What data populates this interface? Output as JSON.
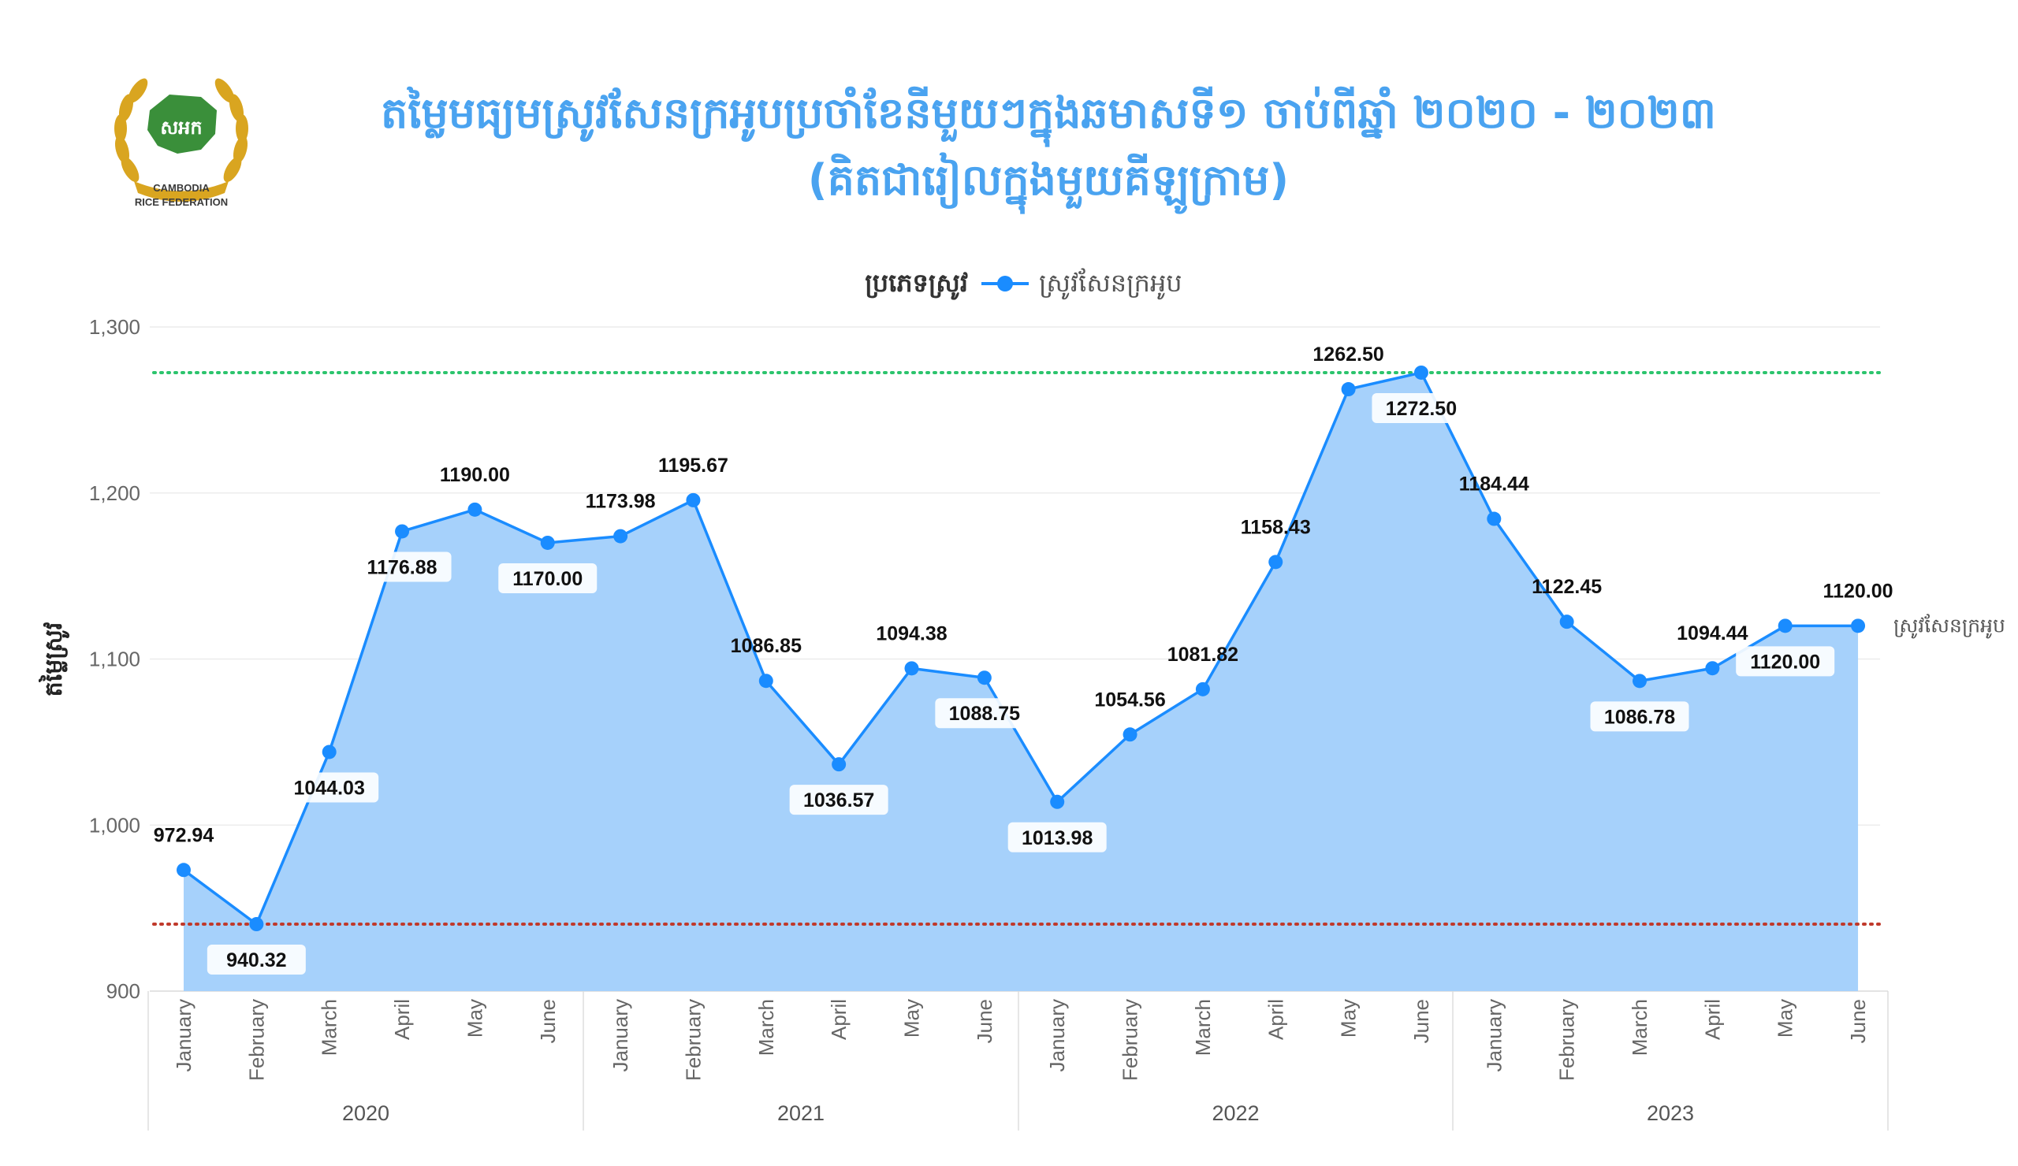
{
  "header": {
    "title_line1": "តម្លៃមធ្យមស្រូវសែនក្រអូបប្រចាំខែនីមួយៗក្នុងឆមាសទី១ ចាប់ពីឆ្នាំ ២០២០ - ២០២៣",
    "title_line2": "(គិតជារៀលក្នុងមួយគីឡូក្រាម)",
    "logo_text_top": "សអក",
    "logo_text_bottom_1": "CAMBODIA",
    "logo_text_bottom_2": "RICE FEDERATION"
  },
  "colors": {
    "title": "#4aa3f0",
    "series": "#1a8cff",
    "area": "#a6d1fb",
    "max_line": "#2cc46d",
    "min_line": "#c0392b",
    "logo_gold": "#d9a520",
    "logo_green": "#3a8f3a"
  },
  "chart_data": {
    "type": "area",
    "legend_title": "ប្រភេទស្រូវ",
    "legend_position": "top-center",
    "ylabel": "តម្លៃស្រូវ",
    "ylim": [
      900,
      1300
    ],
    "yticks": [
      900,
      1000,
      1100,
      1200,
      1300
    ],
    "ytick_labels": [
      "900",
      "1,000",
      "1,100",
      "1,200",
      "1,300"
    ],
    "grid": true,
    "months": [
      "January",
      "February",
      "March",
      "April",
      "May",
      "June",
      "January",
      "February",
      "March",
      "April",
      "May",
      "June",
      "January",
      "February",
      "March",
      "April",
      "May",
      "June",
      "January",
      "February",
      "March",
      "April",
      "May",
      "June"
    ],
    "years": [
      "2020",
      "2021",
      "2022",
      "2023"
    ],
    "series": [
      {
        "name": "ស្រូវសែនក្រអូប",
        "values": [
          972.94,
          940.32,
          1044.03,
          1176.88,
          1190.0,
          1170.0,
          1173.98,
          1195.67,
          1086.85,
          1036.57,
          1094.38,
          1088.75,
          1013.98,
          1054.56,
          1081.82,
          1158.43,
          1262.5,
          1272.5,
          1184.44,
          1122.45,
          1086.78,
          1094.44,
          1120.0,
          1120.0
        ],
        "labels": [
          "972.94",
          "940.32",
          "1044.03",
          "1176.88",
          "1190.00",
          "1170.00",
          "1173.98",
          "1195.67",
          "1086.85",
          "1036.57",
          "1094.38",
          "1088.75",
          "1013.98",
          "1054.56",
          "1081.82",
          "1158.43",
          "1262.50",
          "1272.50",
          "1184.44",
          "1122.45",
          "1086.78",
          "1094.44",
          "1120.00",
          "1120.00"
        ],
        "end_label": "ស្រូវសែនក្រអូប"
      }
    ],
    "reference_lines": [
      {
        "name": "max",
        "value": 1272.5,
        "style": "dotted"
      },
      {
        "name": "min",
        "value": 940.32,
        "style": "dotted"
      }
    ]
  }
}
